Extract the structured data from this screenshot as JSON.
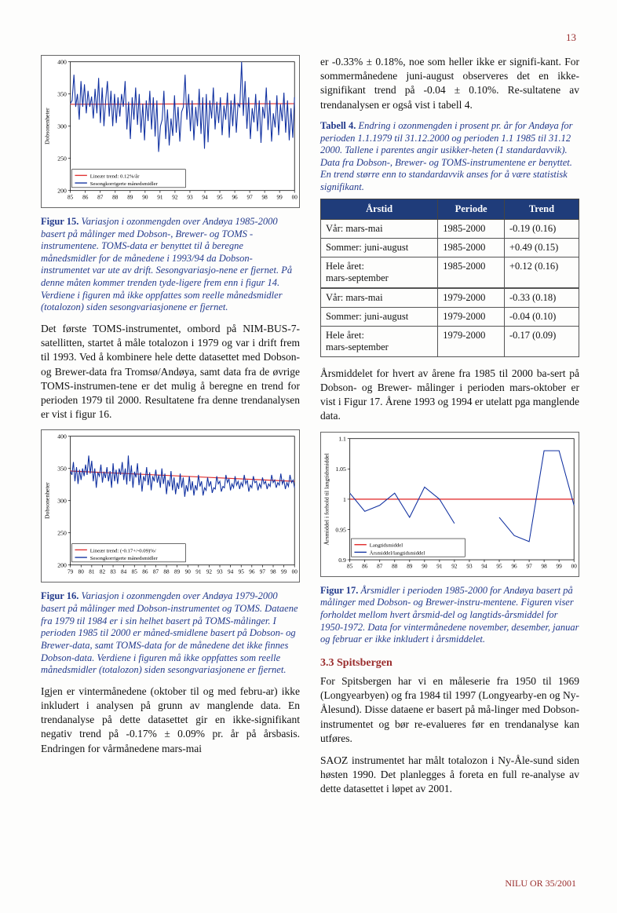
{
  "page_number": "13",
  "footer": "NILU OR 35/2001",
  "fig15": {
    "type": "line",
    "title_lines": [
      "Figur 15.",
      "Variasjon i ozonmengden over Andøya 1985-2000 basert på målinger med Dobson-, Brewer- og TOMS -instrumentene. TOMS-data er benyttet til å beregne månedsmidler for de månedene i 1993/94 da Dobson-instrumentet var ute av drift. Sesongvariasjo-nene er fjernet. På denne måten kommer trenden tyde-ligere frem enn i figur 14. Verdiene i figuren må ikke oppfattes som reelle månedsmidler (totalozon) siden sesongvariasjonene er fjernet."
    ],
    "ylabel": "Dobsonenheter",
    "xticks": [
      "85",
      "86",
      "87",
      "88",
      "89",
      "90",
      "91",
      "92",
      "93",
      "94",
      "95",
      "96",
      "97",
      "98",
      "99",
      "00"
    ],
    "ylim": [
      200,
      400
    ],
    "yticks": [
      200,
      250,
      300,
      350,
      400
    ],
    "legend": [
      "Lineær trend: 0.12%/år",
      "Sesongkorrigerte månedsmidler"
    ],
    "legend_colors": [
      "#e03030",
      "#1030a0"
    ],
    "trend_y": [
      334,
      335
    ],
    "series_color": "#1030a0",
    "trend_color": "#e03030",
    "data": [
      335,
      340,
      380,
      330,
      350,
      310,
      370,
      330,
      365,
      320,
      355,
      330,
      346,
      312,
      358,
      320,
      375,
      305,
      360,
      300,
      340,
      370,
      315,
      355,
      300,
      350,
      305,
      345,
      315,
      350,
      330,
      370,
      295,
      338,
      280,
      345,
      310,
      360,
      302,
      350,
      290,
      335,
      278,
      340,
      308,
      355,
      295,
      345,
      284,
      340,
      260,
      300,
      310,
      355,
      280,
      326,
      270,
      312,
      285,
      348,
      290,
      330,
      276,
      322,
      330,
      380,
      310,
      350,
      292,
      340,
      278,
      330,
      300,
      358,
      288,
      345,
      265,
      350,
      275,
      340,
      312,
      360,
      295,
      338,
      305,
      345,
      286,
      332,
      310,
      352,
      282,
      340,
      300,
      350,
      290,
      335,
      330,
      400,
      316,
      370,
      296,
      345,
      280,
      328,
      306,
      350,
      292,
      340,
      274,
      330,
      312,
      360,
      294,
      340,
      276,
      320,
      298,
      348,
      286,
      334,
      308,
      352,
      290,
      340,
      278,
      328,
      282,
      345
    ]
  },
  "para1": "Det første TOMS-instrumentet, ombord på NIM-BUS-7-satellitten, startet å måle totalozon i 1979 og var i drift frem til 1993. Ved å kombinere hele dette datasettet med Dobson- og Brewer-data fra Tromsø/Andøya, samt data fra de øvrige TOMS-instrumen-tene er det mulig å beregne en trend for perioden 1979 til 2000. Resultatene fra denne trendanalysen er vist i figur 16.",
  "fig16": {
    "type": "line",
    "title_lines": [
      "Figur 16.",
      "Variasjon i ozonmengden over Andøya 1979-2000 basert på målinger med Dobson-instrumentet og TOMS. Dataene fra 1979 til 1984 er i sin helhet basert på TOMS-målinger. I perioden 1985 til 2000 er måned-smidlene basert på Dobson- og Brewer-data, samt TOMS-data for de månedene det ikke finnes Dobson-data. Verdiene i figuren må ikke oppfattes som reelle månedsmidler (totalozon) siden sesongvariasjonene er fjernet."
    ],
    "ylabel": "Dobsonenheter",
    "xticks": [
      "79",
      "80",
      "81",
      "82",
      "83",
      "84",
      "85",
      "86",
      "87",
      "88",
      "89",
      "90",
      "91",
      "92",
      "93",
      "94",
      "95",
      "96",
      "97",
      "98",
      "99",
      "00"
    ],
    "ylim": [
      200,
      400
    ],
    "yticks": [
      200,
      250,
      300,
      350,
      400
    ],
    "legend": [
      "Lineær trend: (-0.17+/-0.09)%/",
      "Sesongkorrigerte månedsmidler"
    ],
    "legend_colors": [
      "#e03030",
      "#1030a0"
    ],
    "trend_y": [
      346,
      330
    ],
    "series_color": "#1030a0",
    "trend_color": "#e03030",
    "data": [
      346,
      340,
      360,
      330,
      352,
      326,
      348,
      332,
      350,
      338,
      356,
      340,
      370,
      342,
      362,
      330,
      350,
      320,
      344,
      338,
      356,
      328,
      345,
      335,
      352,
      330,
      346,
      320,
      358,
      330,
      348,
      326,
      350,
      340,
      360,
      332,
      350,
      325,
      370,
      330,
      355,
      320,
      345,
      336,
      358,
      324,
      344,
      314,
      338,
      330,
      352,
      324,
      344,
      316,
      338,
      330,
      348,
      328,
      340,
      320,
      350,
      326,
      342,
      310,
      332,
      322,
      346,
      316,
      336,
      310,
      328,
      318,
      342,
      320,
      336,
      306,
      324,
      314,
      338,
      316,
      330,
      308,
      324,
      316,
      340,
      322,
      330,
      308,
      320,
      316,
      336,
      322,
      330,
      312,
      320,
      318,
      338,
      326,
      330,
      314,
      322,
      320,
      340,
      328,
      334,
      316,
      326,
      320,
      338,
      324,
      330,
      318,
      328,
      322,
      340,
      326,
      332,
      314,
      324,
      320,
      338,
      328,
      330,
      316,
      326,
      320,
      336,
      326,
      330,
      318,
      326,
      322,
      340,
      328,
      332,
      320,
      328,
      324,
      342,
      326,
      332,
      318,
      328,
      322,
      340,
      328,
      332,
      320
    ]
  },
  "para2": "Igjen er vintermånedene (oktober til og med febru-ar) ikke inkludert i analysen på grunn av manglende data. En trendanalyse på dette datasettet gir en ikke-signifikant negativ trend på -0.17%  ± 0.09% pr. år på årsbasis. Endringen for vårmånedene mars-mai",
  "paraR1": "er -0.33% ±  0.18%, noe som heller ikke er signifi-kant. For sommermånedene juni-august observeres det en ikke-signifikant trend på -0.04 ± 0.10%. Re-sultatene av trendanalysen er også vist i tabell 4.",
  "tab4": {
    "caption_bold": "Tabell 4.",
    "caption": "Endring i ozonmengden i prosent pr. år for Andøya for perioden 1.1.1979 til 31.12.2000 og perioden 1.1 1985 til 31.12 2000. Tallene i parentes angir usikker-heten (1 standardavvik). Data fra Dobson-, Brewer- og TOMS-instrumentene er benyttet. En trend større enn to standardavvik anses for å være statistisk signifikant.",
    "headers": [
      "Årstid",
      "Periode",
      "Trend"
    ],
    "rows_a": [
      [
        "Vår: mars-mai",
        "1985-2000",
        "-0.19 (0.16)"
      ],
      [
        "Sommer: juni-august",
        "1985-2000",
        "+0.49 (0.15)"
      ],
      [
        "Hele året:\nmars-september",
        "1985-2000",
        "+0.12 (0.16)"
      ]
    ],
    "rows_b": [
      [
        "Vår: mars-mai",
        "1979-2000",
        "-0.33 (0.18)"
      ],
      [
        "Sommer: juni-august",
        "1979-2000",
        "-0.04 (0.10)"
      ],
      [
        "Hele året:\nmars-september",
        "1979-2000",
        "-0.17 (0.09)"
      ]
    ]
  },
  "paraR2": "Årsmiddelet for hvert av årene fra 1985 til 2000 ba-sert på Dobson- og Brewer- målinger i perioden mars-oktober er vist i Figur 17. Årene 1993 og 1994 er utelatt pga manglende data.",
  "fig17": {
    "type": "line",
    "title_lines": [
      "Figur 17.",
      "Årsmidler i perioden 1985-2000 for Andøya basert på målinger med Dobson- og Brewer-instru-mentene. Figuren viser forholdet mellom hvert årsmid-del og langtids-årsmiddel for 1950-1972. Data for vintermånedene november, desember, januar og februar er ikke inkludert i årsmiddelet."
    ],
    "ylabel": "Årsmiddel i forhold til langtidsmiddel",
    "xticks": [
      "85",
      "86",
      "87",
      "88",
      "89",
      "90",
      "91",
      "92",
      "93",
      "94",
      "95",
      "96",
      "97",
      "98",
      "99",
      "00"
    ],
    "ylim": [
      0.9,
      1.1
    ],
    "yticks": [
      0.9,
      0.95,
      1.0,
      1.05,
      1.1
    ],
    "legend": [
      "Langtidsmiddel",
      "Årsmiddel/langtidsmiddel"
    ],
    "legend_colors": [
      "#e02020",
      "#1030a0"
    ],
    "ref_y": 1.0,
    "series_color": "#1030a0",
    "ref_color": "#e02020",
    "data": [
      1.01,
      0.98,
      0.99,
      1.01,
      0.97,
      1.02,
      1.0,
      0.96,
      null,
      null,
      0.97,
      0.94,
      0.93,
      1.08,
      1.08,
      0.99
    ]
  },
  "sec33_title": "3.3  Spitsbergen",
  "paraR3": "For Spitsbergen har vi en måleserie fra 1950 til 1969 (Longyearbyen) og fra 1984 til 1997 (Longyearby-en og Ny-Ålesund). Disse dataene er basert på må-linger med Dobson-instrumentet og bør re-evalueres før en trendanalyse kan utføres.",
  "paraR4": "SAOZ instrumentet har målt totalozon i Ny-Åle-sund siden høsten 1990. Det planlegges å foreta en full re-analyse av dette datasettet i løpet av 2001."
}
